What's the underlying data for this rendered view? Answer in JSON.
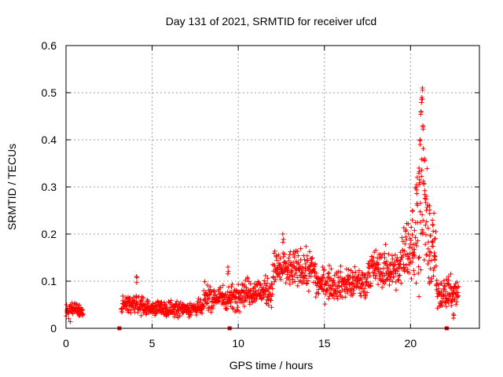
{
  "chart_data": {
    "type": "scatter",
    "title": "Day 131 of 2021, SRMTID for receiver ufcd",
    "xlabel": "GPS time / hours",
    "ylabel": "SRMTID / TECUs",
    "xlim": [
      0,
      24
    ],
    "ylim": [
      0,
      0.6
    ],
    "xticks": [
      0,
      5,
      10,
      15,
      20
    ],
    "xtick_labels": [
      "0",
      "5",
      "10",
      "15",
      "20"
    ],
    "yticks": [
      0,
      0.1,
      0.2,
      0.3,
      0.4,
      0.5,
      0.6
    ],
    "ytick_labels": [
      "0",
      "0.1",
      "0.2",
      "0.3",
      "0.4",
      "0.5",
      "0.6"
    ],
    "grid": true,
    "marker": "+",
    "color": "#ff0000",
    "square_marker_color": "#dd0000",
    "segments": [
      {
        "x_start": 0.0,
        "x_end": 1.0,
        "y_center": 0.038,
        "spread": 0.012
      },
      {
        "x_start": 3.2,
        "x_end": 4.5,
        "y_center": 0.05,
        "spread": 0.015
      },
      {
        "x_start": 4.5,
        "x_end": 8.0,
        "y_center": 0.042,
        "spread": 0.012
      },
      {
        "x_start": 8.0,
        "x_end": 10.0,
        "y_center": 0.065,
        "spread": 0.02
      },
      {
        "x_start": 10.0,
        "x_end": 12.0,
        "y_center": 0.078,
        "spread": 0.022
      },
      {
        "x_start": 12.0,
        "x_end": 14.5,
        "y_center": 0.125,
        "spread": 0.03
      },
      {
        "x_start": 14.5,
        "x_end": 17.5,
        "y_center": 0.095,
        "spread": 0.025
      },
      {
        "x_start": 17.5,
        "x_end": 19.5,
        "y_center": 0.125,
        "spread": 0.03
      },
      {
        "x_start": 19.5,
        "x_end": 20.3,
        "y_center": 0.17,
        "spread": 0.05
      },
      {
        "x_start": 20.3,
        "x_end": 21.0,
        "y_center": 0.24,
        "spread": 0.1
      },
      {
        "x_start": 21.0,
        "x_end": 21.5,
        "y_center": 0.15,
        "spread": 0.06
      },
      {
        "x_start": 21.5,
        "x_end": 22.8,
        "y_center": 0.075,
        "spread": 0.025
      }
    ],
    "spikes": [
      {
        "x": 4.1,
        "y": 0.11
      },
      {
        "x": 9.4,
        "y": 0.13
      },
      {
        "x": 12.6,
        "y": 0.2
      },
      {
        "x": 20.1,
        "y": 0.25
      },
      {
        "x": 20.35,
        "y": 0.3
      },
      {
        "x": 20.5,
        "y": 0.34
      },
      {
        "x": 20.55,
        "y": 0.4
      },
      {
        "x": 20.6,
        "y": 0.46
      },
      {
        "x": 20.65,
        "y": 0.49
      },
      {
        "x": 20.7,
        "y": 0.51
      },
      {
        "x": 20.72,
        "y": 0.43
      },
      {
        "x": 20.8,
        "y": 0.36
      },
      {
        "x": 20.9,
        "y": 0.28
      },
      {
        "x": 21.1,
        "y": 0.26
      },
      {
        "x": 21.3,
        "y": 0.22
      },
      {
        "x": 21.4,
        "y": 0.16
      },
      {
        "x": 22.2,
        "y": 0.11
      },
      {
        "x": 22.5,
        "y": 0.03
      }
    ],
    "square_markers": [
      {
        "x": 3.1,
        "y": 0.0
      },
      {
        "x": 9.5,
        "y": 0.0
      },
      {
        "x": 22.1,
        "y": 0.0
      }
    ]
  }
}
